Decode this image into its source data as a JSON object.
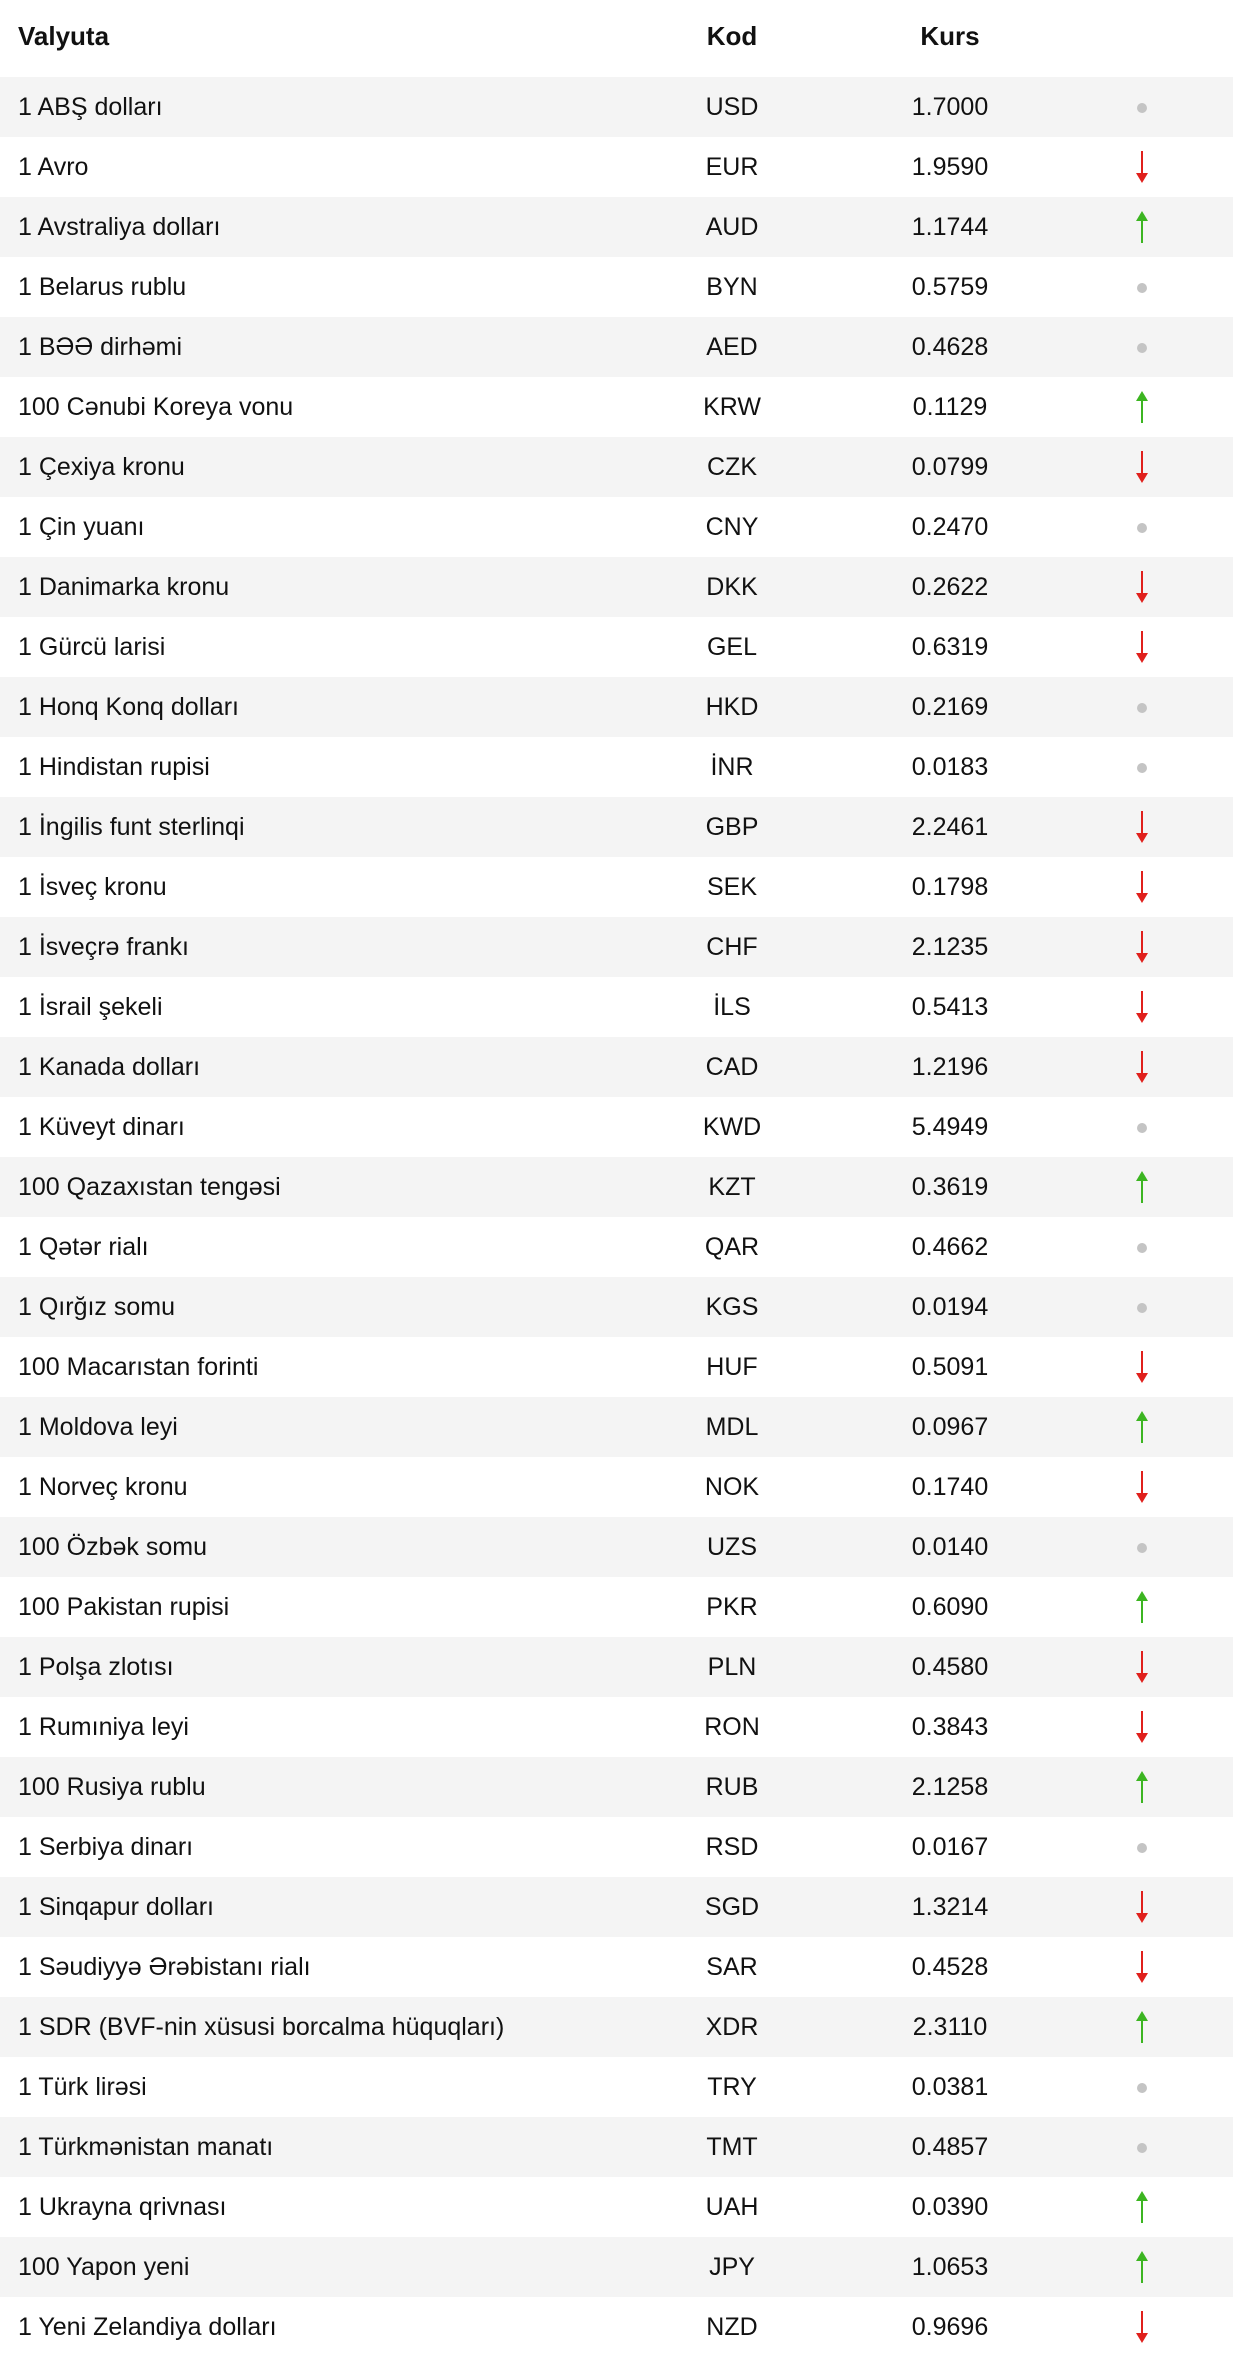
{
  "header": {
    "currency": "Valyuta",
    "code": "Kod",
    "rate": "Kurs"
  },
  "colors": {
    "up": "#3cb521",
    "down": "#e0201c",
    "neutral": "#c4c4c4",
    "stripe": "#f4f4f4"
  },
  "rows": [
    {
      "name": "1 ABŞ dolları",
      "code": "USD",
      "rate": "1.7000",
      "trend": "neutral"
    },
    {
      "name": "1 Avro",
      "code": "EUR",
      "rate": "1.9590",
      "trend": "down"
    },
    {
      "name": "1 Avstraliya dolları",
      "code": "AUD",
      "rate": "1.1744",
      "trend": "up"
    },
    {
      "name": "1 Belarus rublu",
      "code": "BYN",
      "rate": "0.5759",
      "trend": "neutral"
    },
    {
      "name": "1 BƏƏ dirhəmi",
      "code": "AED",
      "rate": "0.4628",
      "trend": "neutral"
    },
    {
      "name": "100 Cənubi Koreya vonu",
      "code": "KRW",
      "rate": "0.1129",
      "trend": "up"
    },
    {
      "name": "1 Çexiya kronu",
      "code": "CZK",
      "rate": "0.0799",
      "trend": "down"
    },
    {
      "name": "1 Çin yuanı",
      "code": "CNY",
      "rate": "0.2470",
      "trend": "neutral"
    },
    {
      "name": "1 Danimarka kronu",
      "code": "DKK",
      "rate": "0.2622",
      "trend": "down"
    },
    {
      "name": "1 Gürcü larisi",
      "code": "GEL",
      "rate": "0.6319",
      "trend": "down"
    },
    {
      "name": "1 Honq Konq dolları",
      "code": "HKD",
      "rate": "0.2169",
      "trend": "neutral"
    },
    {
      "name": "1 Hindistan rupisi",
      "code": "İNR",
      "rate": "0.0183",
      "trend": "neutral"
    },
    {
      "name": "1 İngilis funt sterlinqi",
      "code": "GBP",
      "rate": "2.2461",
      "trend": "down"
    },
    {
      "name": "1 İsveç kronu",
      "code": "SEK",
      "rate": "0.1798",
      "trend": "down"
    },
    {
      "name": "1 İsveçrə frankı",
      "code": "CHF",
      "rate": "2.1235",
      "trend": "down"
    },
    {
      "name": "1 İsrail şekeli",
      "code": "İLS",
      "rate": "0.5413",
      "trend": "down"
    },
    {
      "name": "1 Kanada dolları",
      "code": "CAD",
      "rate": "1.2196",
      "trend": "down"
    },
    {
      "name": "1 Küveyt dinarı",
      "code": "KWD",
      "rate": "5.4949",
      "trend": "neutral"
    },
    {
      "name": "100 Qazaxıstan tengəsi",
      "code": "KZT",
      "rate": "0.3619",
      "trend": "up"
    },
    {
      "name": "1 Qətər rialı",
      "code": "QAR",
      "rate": "0.4662",
      "trend": "neutral"
    },
    {
      "name": "1 Qırğız somu",
      "code": "KGS",
      "rate": "0.0194",
      "trend": "neutral"
    },
    {
      "name": "100 Macarıstan forinti",
      "code": "HUF",
      "rate": "0.5091",
      "trend": "down"
    },
    {
      "name": "1 Moldova leyi",
      "code": "MDL",
      "rate": "0.0967",
      "trend": "up"
    },
    {
      "name": "1 Norveç kronu",
      "code": "NOK",
      "rate": "0.1740",
      "trend": "down"
    },
    {
      "name": "100 Özbək somu",
      "code": "UZS",
      "rate": "0.0140",
      "trend": "neutral"
    },
    {
      "name": "100 Pakistan rupisi",
      "code": "PKR",
      "rate": "0.6090",
      "trend": "up"
    },
    {
      "name": "1 Polşa zlotısı",
      "code": "PLN",
      "rate": "0.4580",
      "trend": "down"
    },
    {
      "name": "1 Rumıniya leyi",
      "code": "RON",
      "rate": "0.3843",
      "trend": "down"
    },
    {
      "name": "100 Rusiya rublu",
      "code": "RUB",
      "rate": "2.1258",
      "trend": "up"
    },
    {
      "name": "1 Serbiya dinarı",
      "code": "RSD",
      "rate": "0.0167",
      "trend": "neutral"
    },
    {
      "name": "1 Sinqapur dolları",
      "code": "SGD",
      "rate": "1.3214",
      "trend": "down"
    },
    {
      "name": "1 Səudiyyə Ərəbistanı rialı",
      "code": "SAR",
      "rate": "0.4528",
      "trend": "down"
    },
    {
      "name": "1 SDR (BVF-nin xüsusi borcalma hüquqları)",
      "code": "XDR",
      "rate": "2.3110",
      "trend": "up"
    },
    {
      "name": "1 Türk lirəsi",
      "code": "TRY",
      "rate": "0.0381",
      "trend": "neutral"
    },
    {
      "name": "1 Türkmənistan manatı",
      "code": "TMT",
      "rate": "0.4857",
      "trend": "neutral"
    },
    {
      "name": "1 Ukrayna qrivnası",
      "code": "UAH",
      "rate": "0.0390",
      "trend": "up"
    },
    {
      "name": "100 Yapon yeni",
      "code": "JPY",
      "rate": "1.0653",
      "trend": "up"
    },
    {
      "name": "1 Yeni Zelandiya dolları",
      "code": "NZD",
      "rate": "0.9696",
      "trend": "down"
    }
  ]
}
